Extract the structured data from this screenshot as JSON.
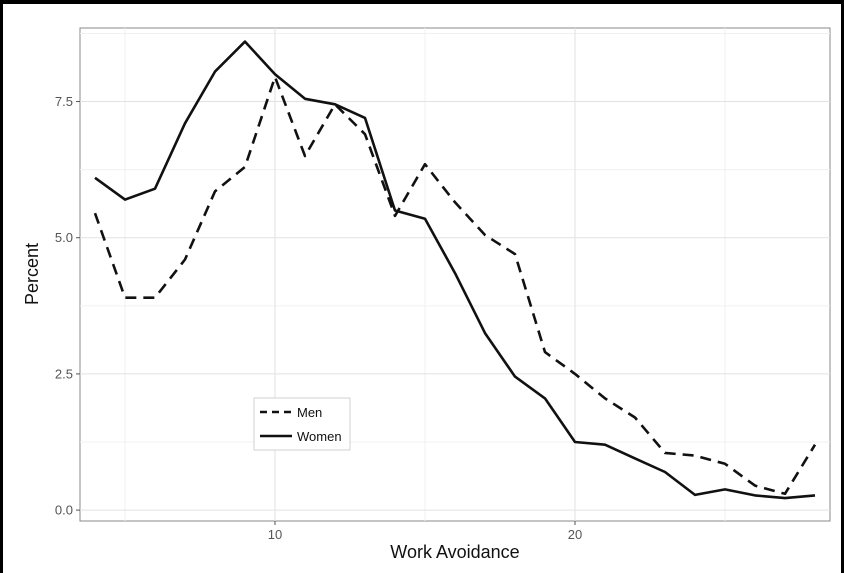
{
  "chart_data": {
    "type": "line",
    "title": "",
    "xlabel": "Work Avoidance",
    "ylabel": "Percent",
    "xlim": [
      3.5,
      28.5
    ],
    "ylim": [
      -0.2,
      8.85
    ],
    "x_ticks": [
      10,
      20
    ],
    "y_ticks": [
      0.0,
      2.5,
      5.0,
      7.5
    ],
    "x_tick_labels": [
      "10",
      "20"
    ],
    "y_tick_labels": [
      "0.0",
      "2.5",
      "5.0",
      "7.5"
    ],
    "grid": true,
    "legend_position": "bottom-left",
    "series": [
      {
        "name": "Men",
        "style": "dashed",
        "color": "#111111",
        "x": [
          4,
          5,
          6,
          7,
          8,
          9,
          10,
          11,
          12,
          13,
          14,
          15,
          16,
          17,
          18,
          19,
          20,
          21,
          22,
          23,
          24,
          25,
          26,
          27,
          28
        ],
        "y": [
          5.45,
          3.9,
          3.9,
          4.6,
          5.85,
          6.3,
          7.95,
          6.5,
          7.45,
          6.9,
          5.4,
          6.35,
          5.65,
          5.05,
          4.7,
          2.9,
          2.5,
          2.05,
          1.7,
          1.05,
          1.0,
          0.85,
          0.45,
          0.3,
          1.2
        ]
      },
      {
        "name": "Women",
        "style": "solid",
        "color": "#111111",
        "x": [
          4,
          5,
          6,
          7,
          8,
          9,
          10,
          11,
          12,
          13,
          14,
          15,
          16,
          17,
          18,
          19,
          20,
          21,
          22,
          23,
          24,
          25,
          26,
          27,
          28
        ],
        "y": [
          6.1,
          5.7,
          5.9,
          7.1,
          8.05,
          8.6,
          8.0,
          7.55,
          7.45,
          7.2,
          5.5,
          5.35,
          4.35,
          3.25,
          2.45,
          2.05,
          1.25,
          1.2,
          0.95,
          0.7,
          0.28,
          0.38,
          0.27,
          0.22,
          0.27
        ]
      }
    ]
  }
}
